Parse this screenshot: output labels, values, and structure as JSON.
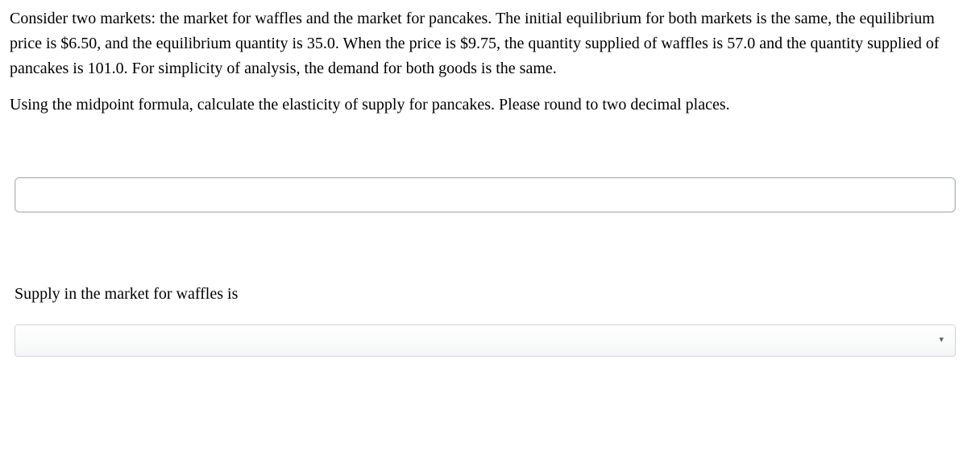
{
  "question": {
    "paragraph1": "Consider two markets: the market for waffles and the market for pancakes. The initial equilibrium for both markets is the same, the equilibrium price is $6.50, and the equilibrium quantity is 35.0. When the price is $9.75, the quantity supplied of waffles is 57.0 and the quantity supplied of pancakes is 101.0. For simplicity of analysis, the demand for both goods is the same.",
    "paragraph2": "Using the midpoint formula, calculate the elasticity of supply for pancakes. Please round to two decimal places."
  },
  "answer_input": {
    "value": "",
    "placeholder": ""
  },
  "sub_question": {
    "text": "Supply in the market for waffles is"
  },
  "dropdown": {
    "selected": "",
    "caret_glyph": "▾"
  }
}
